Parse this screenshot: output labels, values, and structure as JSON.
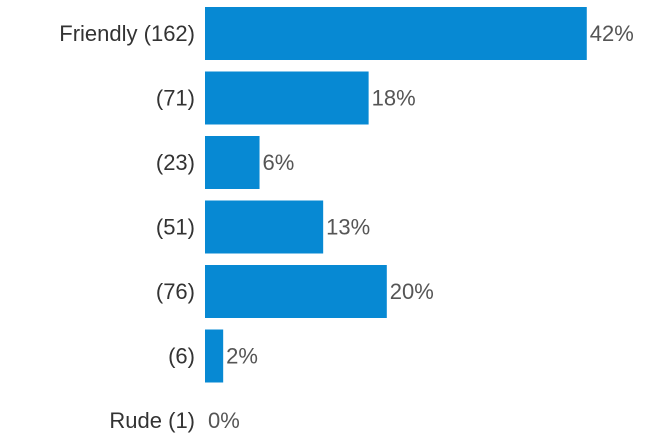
{
  "chart_data": {
    "type": "bar",
    "orientation": "horizontal",
    "categories": [
      "Friendly (162)",
      "(71)",
      "(23)",
      "(51)",
      "(76)",
      "(6)",
      "Rude (1)"
    ],
    "values": [
      42,
      18,
      6,
      13,
      20,
      2,
      0
    ],
    "value_labels": [
      "42%",
      "18%",
      "6%",
      "13%",
      "20%",
      "2%",
      "0%"
    ],
    "xlim": [
      0,
      100
    ],
    "grid": false,
    "legend": "none",
    "bar_color": "#0789d3"
  }
}
